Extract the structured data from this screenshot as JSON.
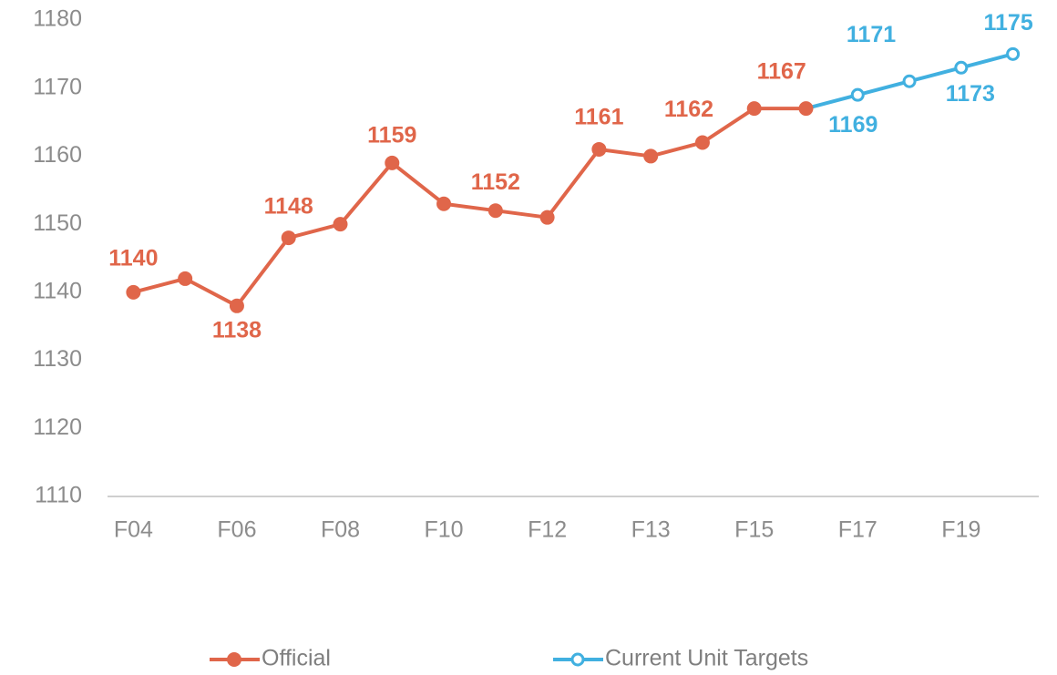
{
  "chart_data": {
    "type": "line",
    "categories": [
      "F04",
      null,
      "F06",
      null,
      "F08",
      null,
      "F10",
      null,
      "F12",
      null,
      "F13",
      null,
      "F15",
      null,
      "F17",
      null,
      "F19",
      null
    ],
    "series": [
      {
        "name": "Official",
        "color": "#e0664a",
        "values": [
          1140,
          1142,
          1138,
          1148,
          1150,
          1159,
          1153,
          1152,
          1151,
          1161,
          1160,
          1162,
          1167,
          1167,
          null,
          null,
          null,
          null
        ],
        "value_labels": [
          "1140",
          null,
          "1138",
          "1148",
          null,
          "1159",
          null,
          "1152",
          null,
          "1161",
          null,
          "1162",
          "1167",
          null,
          null,
          null,
          null,
          null
        ]
      },
      {
        "name": "Current Unit Targets",
        "color": "#41b0e0",
        "values": [
          null,
          null,
          null,
          null,
          null,
          null,
          null,
          null,
          null,
          null,
          null,
          null,
          null,
          1167,
          1169,
          1171,
          1173,
          1175
        ],
        "value_labels": [
          null,
          null,
          null,
          null,
          null,
          null,
          null,
          null,
          null,
          null,
          null,
          null,
          null,
          null,
          "1169",
          "1171",
          "1173",
          "1175"
        ]
      }
    ],
    "ylim": [
      1110,
      1180
    ],
    "yticks": [
      1110,
      1120,
      1130,
      1140,
      1150,
      1160,
      1170,
      1180
    ],
    "grid": false,
    "legend": "bottom"
  }
}
